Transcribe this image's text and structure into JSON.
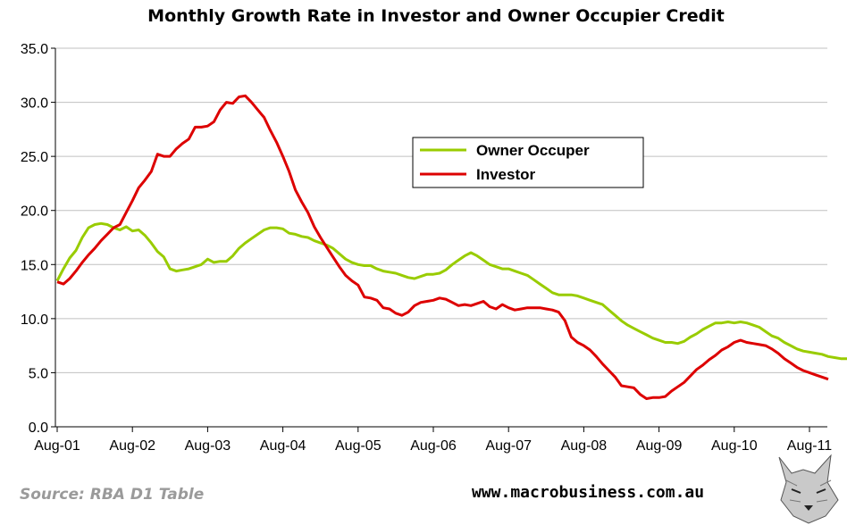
{
  "chart_data": {
    "type": "line",
    "title": "Monthly Growth Rate in Investor and Owner Occupier Credit",
    "xlabel": "",
    "ylabel": "",
    "ylim": [
      0,
      35
    ],
    "yticks": [
      "0.0",
      "5.0",
      "10.0",
      "15.0",
      "20.0",
      "25.0",
      "30.0",
      "35.0"
    ],
    "xticks": [
      "Aug-01",
      "Aug-02",
      "Aug-03",
      "Aug-04",
      "Aug-05",
      "Aug-06",
      "Aug-07",
      "Aug-08",
      "Aug-09",
      "Aug-10",
      "Aug-11"
    ],
    "grid": "horizontal",
    "legend_position": "upper-right-center",
    "series": [
      {
        "name": "Owner Occuper",
        "color": "#99cc00",
        "points": [
          [
            0,
            13.5
          ],
          [
            1,
            14.6
          ],
          [
            2,
            15.6
          ],
          [
            3,
            16.3
          ],
          [
            4,
            17.5
          ],
          [
            5,
            18.4
          ],
          [
            6,
            18.7
          ],
          [
            7,
            18.8
          ],
          [
            8,
            18.7
          ],
          [
            9,
            18.4
          ],
          [
            10,
            18.2
          ],
          [
            11,
            18.5
          ],
          [
            12,
            18.1
          ],
          [
            13,
            18.2
          ],
          [
            14,
            17.7
          ],
          [
            15,
            17.0
          ],
          [
            16,
            16.2
          ],
          [
            17,
            15.7
          ],
          [
            18,
            14.6
          ],
          [
            19,
            14.4
          ],
          [
            20,
            14.5
          ],
          [
            21,
            14.6
          ],
          [
            22,
            14.8
          ],
          [
            23,
            15.0
          ],
          [
            24,
            15.5
          ],
          [
            25,
            15.2
          ],
          [
            26,
            15.3
          ],
          [
            27,
            15.3
          ],
          [
            28,
            15.8
          ],
          [
            29,
            16.5
          ],
          [
            30,
            17.0
          ],
          [
            31,
            17.4
          ],
          [
            32,
            17.8
          ],
          [
            33,
            18.2
          ],
          [
            34,
            18.4
          ],
          [
            35,
            18.4
          ],
          [
            36,
            18.3
          ],
          [
            37,
            17.9
          ],
          [
            38,
            17.8
          ],
          [
            39,
            17.6
          ],
          [
            40,
            17.5
          ],
          [
            41,
            17.2
          ],
          [
            42,
            17.0
          ],
          [
            43,
            16.8
          ],
          [
            44,
            16.5
          ],
          [
            45,
            16.0
          ],
          [
            46,
            15.5
          ],
          [
            47,
            15.2
          ],
          [
            48,
            15.0
          ],
          [
            49,
            14.9
          ],
          [
            50,
            14.9
          ],
          [
            51,
            14.6
          ],
          [
            52,
            14.4
          ],
          [
            53,
            14.3
          ],
          [
            54,
            14.2
          ],
          [
            55,
            14.0
          ],
          [
            56,
            13.8
          ],
          [
            57,
            13.7
          ],
          [
            58,
            13.9
          ],
          [
            59,
            14.1
          ],
          [
            60,
            14.1
          ],
          [
            61,
            14.2
          ],
          [
            62,
            14.5
          ],
          [
            63,
            15.0
          ],
          [
            64,
            15.4
          ],
          [
            65,
            15.8
          ],
          [
            66,
            16.1
          ],
          [
            67,
            15.8
          ],
          [
            68,
            15.4
          ],
          [
            69,
            15.0
          ],
          [
            70,
            14.8
          ],
          [
            71,
            14.6
          ],
          [
            72,
            14.6
          ],
          [
            73,
            14.4
          ],
          [
            74,
            14.2
          ],
          [
            75,
            14.0
          ],
          [
            76,
            13.6
          ],
          [
            77,
            13.2
          ],
          [
            78,
            12.8
          ],
          [
            79,
            12.4
          ],
          [
            80,
            12.2
          ],
          [
            81,
            12.2
          ],
          [
            82,
            12.2
          ],
          [
            83,
            12.1
          ],
          [
            84,
            11.9
          ],
          [
            85,
            11.7
          ],
          [
            86,
            11.5
          ],
          [
            87,
            11.3
          ],
          [
            88,
            10.8
          ],
          [
            89,
            10.3
          ],
          [
            90,
            9.8
          ],
          [
            91,
            9.4
          ],
          [
            92,
            9.1
          ],
          [
            93,
            8.8
          ],
          [
            94,
            8.5
          ],
          [
            95,
            8.2
          ],
          [
            96,
            8.0
          ],
          [
            97,
            7.8
          ],
          [
            98,
            7.8
          ],
          [
            99,
            7.7
          ],
          [
            100,
            7.9
          ],
          [
            101,
            8.3
          ],
          [
            102,
            8.6
          ],
          [
            103,
            9.0
          ],
          [
            104,
            9.3
          ],
          [
            105,
            9.6
          ],
          [
            106,
            9.6
          ],
          [
            107,
            9.7
          ],
          [
            108,
            9.6
          ],
          [
            109,
            9.7
          ],
          [
            110,
            9.6
          ],
          [
            111,
            9.4
          ],
          [
            112,
            9.2
          ],
          [
            113,
            8.8
          ],
          [
            114,
            8.4
          ],
          [
            115,
            8.2
          ],
          [
            116,
            7.8
          ],
          [
            117,
            7.5
          ],
          [
            118,
            7.2
          ],
          [
            119,
            7.0
          ],
          [
            120,
            6.9
          ],
          [
            121,
            6.8
          ],
          [
            122,
            6.7
          ],
          [
            123,
            6.5
          ],
          [
            124,
            6.4
          ],
          [
            125,
            6.3
          ],
          [
            126,
            6.3
          ],
          [
            127,
            6.3
          ],
          [
            128,
            6.3
          ],
          [
            129,
            6.3
          ],
          [
            130,
            6.4
          ],
          [
            131,
            6.2
          ]
        ]
      },
      {
        "name": "Investor",
        "color": "#dd0000",
        "points": [
          [
            0,
            13.4
          ],
          [
            1,
            13.2
          ],
          [
            2,
            13.7
          ],
          [
            3,
            14.4
          ],
          [
            4,
            15.2
          ],
          [
            5,
            15.9
          ],
          [
            6,
            16.5
          ],
          [
            7,
            17.2
          ],
          [
            8,
            17.8
          ],
          [
            9,
            18.4
          ],
          [
            10,
            18.7
          ],
          [
            11,
            19.8
          ],
          [
            12,
            20.9
          ],
          [
            13,
            22.1
          ],
          [
            14,
            22.8
          ],
          [
            15,
            23.6
          ],
          [
            16,
            25.2
          ],
          [
            17,
            25.0
          ],
          [
            18,
            25.0
          ],
          [
            19,
            25.7
          ],
          [
            20,
            26.2
          ],
          [
            21,
            26.6
          ],
          [
            22,
            27.7
          ],
          [
            23,
            27.7
          ],
          [
            24,
            27.8
          ],
          [
            25,
            28.2
          ],
          [
            26,
            29.3
          ],
          [
            27,
            30.0
          ],
          [
            28,
            29.9
          ],
          [
            29,
            30.5
          ],
          [
            30,
            30.6
          ],
          [
            31,
            30.0
          ],
          [
            32,
            29.3
          ],
          [
            33,
            28.6
          ],
          [
            34,
            27.4
          ],
          [
            35,
            26.3
          ],
          [
            36,
            25.0
          ],
          [
            37,
            23.6
          ],
          [
            38,
            21.9
          ],
          [
            39,
            20.8
          ],
          [
            40,
            19.8
          ],
          [
            41,
            18.5
          ],
          [
            42,
            17.5
          ],
          [
            43,
            16.6
          ],
          [
            44,
            15.7
          ],
          [
            45,
            14.8
          ],
          [
            46,
            14.0
          ],
          [
            47,
            13.5
          ],
          [
            48,
            13.1
          ],
          [
            49,
            12.0
          ],
          [
            50,
            11.9
          ],
          [
            51,
            11.7
          ],
          [
            52,
            11.0
          ],
          [
            53,
            10.9
          ],
          [
            54,
            10.5
          ],
          [
            55,
            10.3
          ],
          [
            56,
            10.6
          ],
          [
            57,
            11.2
          ],
          [
            58,
            11.5
          ],
          [
            59,
            11.6
          ],
          [
            60,
            11.7
          ],
          [
            61,
            11.9
          ],
          [
            62,
            11.8
          ],
          [
            63,
            11.5
          ],
          [
            64,
            11.2
          ],
          [
            65,
            11.3
          ],
          [
            66,
            11.2
          ],
          [
            67,
            11.4
          ],
          [
            68,
            11.6
          ],
          [
            69,
            11.1
          ],
          [
            70,
            10.9
          ],
          [
            71,
            11.3
          ],
          [
            72,
            11.0
          ],
          [
            73,
            10.8
          ],
          [
            74,
            10.9
          ],
          [
            75,
            11.0
          ],
          [
            76,
            11.0
          ],
          [
            77,
            11.0
          ],
          [
            78,
            10.9
          ],
          [
            79,
            10.8
          ],
          [
            80,
            10.6
          ],
          [
            81,
            9.8
          ],
          [
            82,
            8.3
          ],
          [
            83,
            7.8
          ],
          [
            84,
            7.5
          ],
          [
            85,
            7.1
          ],
          [
            86,
            6.5
          ],
          [
            87,
            5.8
          ],
          [
            88,
            5.2
          ],
          [
            89,
            4.6
          ],
          [
            90,
            3.8
          ],
          [
            91,
            3.7
          ],
          [
            92,
            3.6
          ],
          [
            93,
            3.0
          ],
          [
            94,
            2.6
          ],
          [
            95,
            2.7
          ],
          [
            96,
            2.7
          ],
          [
            97,
            2.8
          ],
          [
            98,
            3.3
          ],
          [
            99,
            3.7
          ],
          [
            100,
            4.1
          ],
          [
            101,
            4.7
          ],
          [
            102,
            5.3
          ],
          [
            103,
            5.7
          ],
          [
            104,
            6.2
          ],
          [
            105,
            6.6
          ],
          [
            106,
            7.1
          ],
          [
            107,
            7.4
          ],
          [
            108,
            7.8
          ],
          [
            109,
            8.0
          ],
          [
            110,
            7.8
          ],
          [
            111,
            7.7
          ],
          [
            112,
            7.6
          ],
          [
            113,
            7.5
          ],
          [
            114,
            7.2
          ],
          [
            115,
            6.8
          ],
          [
            116,
            6.3
          ],
          [
            117,
            5.9
          ],
          [
            118,
            5.5
          ],
          [
            119,
            5.2
          ],
          [
            120,
            5.0
          ],
          [
            121,
            4.8
          ],
          [
            122,
            4.6
          ],
          [
            123,
            4.4
          ]
        ]
      }
    ]
  },
  "footer": {
    "source": "Source: RBA D1 Table",
    "website": "www.macrobusiness.com.au"
  },
  "logo": {
    "icon": "wolf-logo-icon"
  }
}
